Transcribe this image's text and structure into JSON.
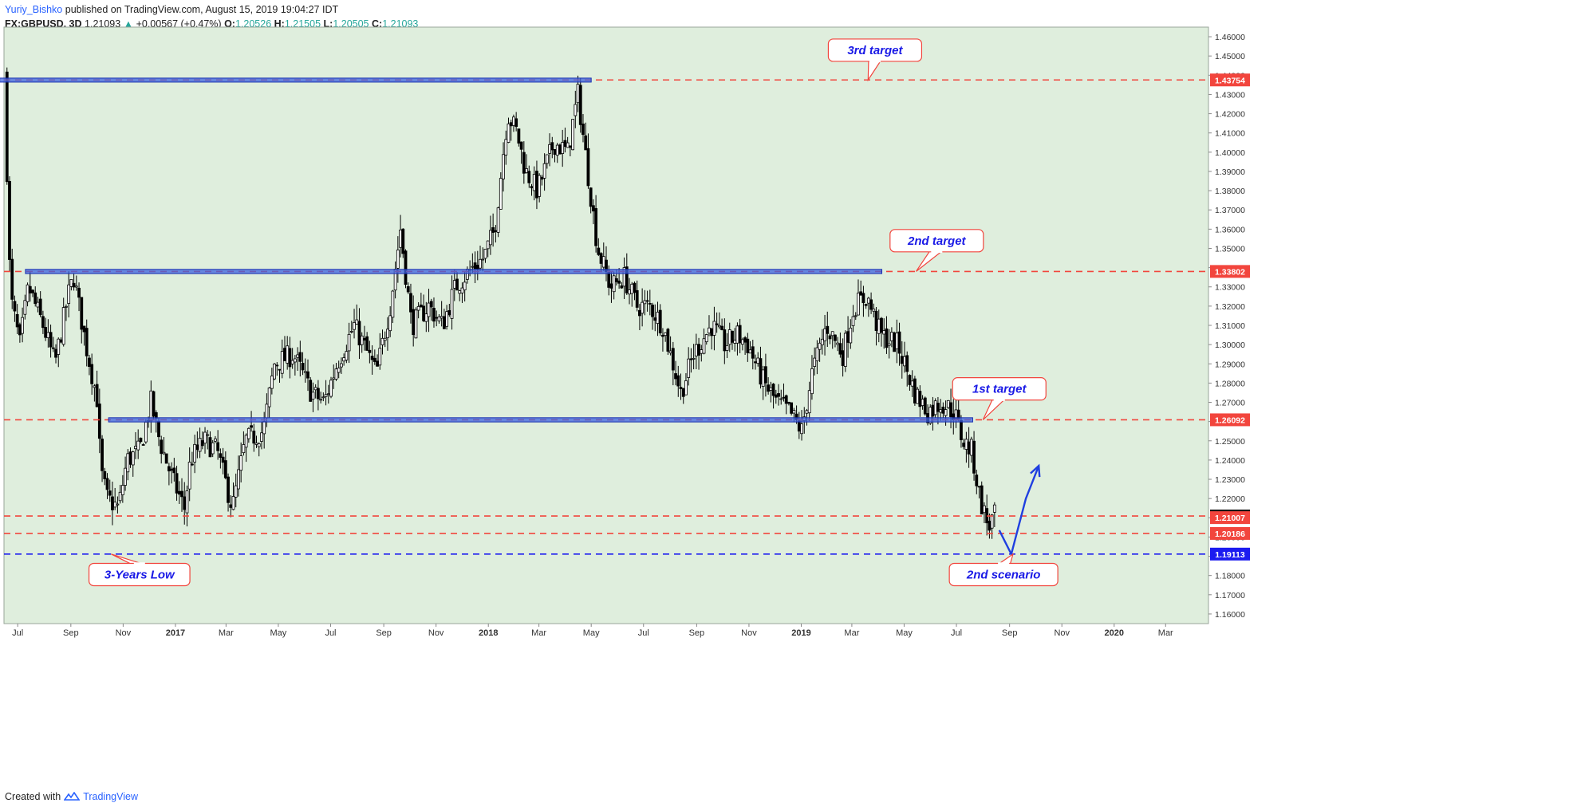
{
  "header": {
    "author": "Yuriy_Bishko",
    "published": "published on TradingView.com, August 15, 2019 19:04:27 IDT",
    "symbol": "FX:GBPUSD, 3D",
    "last": "1.21093",
    "change_arrow": "▲",
    "change": "+0.00567 (+0.47%)",
    "o_label": "O:",
    "o": "1.20526",
    "h_label": "H:",
    "h": "1.21505",
    "l_label": "L:",
    "l": "1.20505",
    "c_label": "C:",
    "c": "1.21093"
  },
  "footer": {
    "created": "Created with",
    "brand": "TradingView"
  },
  "colors": {
    "plot_bg": "#dfeedd",
    "bull": "#ffffff",
    "bear": "#000000",
    "red_line": "#f2453d",
    "blue_line": "#1c1cf0",
    "zone_fill": "#3d63dd",
    "zone_stroke": "#1a2fb0",
    "callout_border": "#f2453d",
    "callout_text": "#1a1ae6",
    "arrow": "#1f3fe0"
  },
  "chart_data": {
    "type": "candlestick",
    "symbol": "GBPUSD",
    "timeframe": "3D",
    "x_range": [
      "2016-06-15",
      "2020-04-20"
    ],
    "y_range": [
      1.155,
      1.465
    ],
    "grid": false,
    "y_ticks": [
      "1.46000",
      "1.45000",
      "1.44000",
      "1.43000",
      "1.42000",
      "1.41000",
      "1.40000",
      "1.39000",
      "1.38000",
      "1.37000",
      "1.36000",
      "1.35000",
      "1.34000",
      "1.33000",
      "1.32000",
      "1.31000",
      "1.30000",
      "1.29000",
      "1.28000",
      "1.27000",
      "1.26000",
      "1.25000",
      "1.24000",
      "1.23000",
      "1.22000",
      "1.21000",
      "1.20000",
      "1.19000",
      "1.18000",
      "1.17000",
      "1.16000"
    ],
    "y_tick_values": [
      1.46,
      1.45,
      1.44,
      1.43,
      1.42,
      1.41,
      1.4,
      1.39,
      1.38,
      1.37,
      1.36,
      1.35,
      1.34,
      1.33,
      1.32,
      1.31,
      1.3,
      1.29,
      1.28,
      1.27,
      1.26,
      1.25,
      1.24,
      1.23,
      1.22,
      1.21,
      1.2,
      1.19,
      1.18,
      1.17,
      1.16
    ],
    "x_ticks": [
      {
        "label": "Jul",
        "date": "2016-07-01"
      },
      {
        "label": "Sep",
        "date": "2016-09-01"
      },
      {
        "label": "Nov",
        "date": "2016-11-01"
      },
      {
        "label": "2017",
        "date": "2017-01-01",
        "bold": true
      },
      {
        "label": "Mar",
        "date": "2017-03-01"
      },
      {
        "label": "May",
        "date": "2017-05-01"
      },
      {
        "label": "Jul",
        "date": "2017-07-01"
      },
      {
        "label": "Sep",
        "date": "2017-09-01"
      },
      {
        "label": "Nov",
        "date": "2017-11-01"
      },
      {
        "label": "2018",
        "date": "2018-01-01",
        "bold": true
      },
      {
        "label": "Mar",
        "date": "2018-03-01"
      },
      {
        "label": "May",
        "date": "2018-05-01"
      },
      {
        "label": "Jul",
        "date": "2018-07-01"
      },
      {
        "label": "Sep",
        "date": "2018-09-01"
      },
      {
        "label": "Nov",
        "date": "2018-11-01"
      },
      {
        "label": "2019",
        "date": "2019-01-01",
        "bold": true
      },
      {
        "label": "Mar",
        "date": "2019-03-01"
      },
      {
        "label": "May",
        "date": "2019-05-01"
      },
      {
        "label": "Jul",
        "date": "2019-07-01"
      },
      {
        "label": "Sep",
        "date": "2019-09-01"
      },
      {
        "label": "Nov",
        "date": "2019-11-01"
      },
      {
        "label": "2020",
        "date": "2020-01-01",
        "bold": true
      },
      {
        "label": "Mar",
        "date": "2020-03-01"
      }
    ],
    "price_path": [
      [
        "2016-06-17",
        1.44
      ],
      [
        "2016-06-24",
        1.325
      ],
      [
        "2016-07-05",
        1.3
      ],
      [
        "2016-07-15",
        1.33
      ],
      [
        "2016-08-01",
        1.31
      ],
      [
        "2016-08-15",
        1.29
      ],
      [
        "2016-08-30",
        1.325
      ],
      [
        "2016-09-06",
        1.335
      ],
      [
        "2016-09-20",
        1.3
      ],
      [
        "2016-10-04",
        1.27
      ],
      [
        "2016-10-07",
        1.235
      ],
      [
        "2016-10-15",
        1.22
      ],
      [
        "2016-10-28",
        1.215
      ],
      [
        "2016-11-07",
        1.24
      ],
      [
        "2016-11-22",
        1.245
      ],
      [
        "2016-12-05",
        1.27
      ],
      [
        "2016-12-15",
        1.25
      ],
      [
        "2016-12-30",
        1.23
      ],
      [
        "2017-01-13",
        1.215
      ],
      [
        "2017-01-20",
        1.24
      ],
      [
        "2017-02-05",
        1.25
      ],
      [
        "2017-02-20",
        1.245
      ],
      [
        "2017-03-10",
        1.215
      ],
      [
        "2017-03-25",
        1.25
      ],
      [
        "2017-04-15",
        1.255
      ],
      [
        "2017-04-28",
        1.29
      ],
      [
        "2017-05-20",
        1.295
      ],
      [
        "2017-06-10",
        1.275
      ],
      [
        "2017-06-25",
        1.27
      ],
      [
        "2017-07-10",
        1.29
      ],
      [
        "2017-07-30",
        1.31
      ],
      [
        "2017-08-10",
        1.3
      ],
      [
        "2017-08-25",
        1.285
      ],
      [
        "2017-09-10",
        1.32
      ],
      [
        "2017-09-22",
        1.36
      ],
      [
        "2017-10-05",
        1.31
      ],
      [
        "2017-10-25",
        1.32
      ],
      [
        "2017-11-10",
        1.31
      ],
      [
        "2017-11-25",
        1.33
      ],
      [
        "2017-12-15",
        1.34
      ],
      [
        "2017-12-28",
        1.345
      ],
      [
        "2018-01-10",
        1.36
      ],
      [
        "2018-01-25",
        1.42
      ],
      [
        "2018-02-05",
        1.41
      ],
      [
        "2018-02-15",
        1.39
      ],
      [
        "2018-03-01",
        1.38
      ],
      [
        "2018-03-20",
        1.405
      ],
      [
        "2018-04-05",
        1.4
      ],
      [
        "2018-04-17",
        1.43
      ],
      [
        "2018-04-27",
        1.395
      ],
      [
        "2018-05-10",
        1.35
      ],
      [
        "2018-05-25",
        1.33
      ],
      [
        "2018-06-10",
        1.335
      ],
      [
        "2018-06-25",
        1.32
      ],
      [
        "2018-07-10",
        1.32
      ],
      [
        "2018-07-25",
        1.31
      ],
      [
        "2018-08-15",
        1.275
      ],
      [
        "2018-08-30",
        1.295
      ],
      [
        "2018-09-20",
        1.31
      ],
      [
        "2018-10-05",
        1.3
      ],
      [
        "2018-10-20",
        1.305
      ],
      [
        "2018-11-01",
        1.3
      ],
      [
        "2018-11-20",
        1.28
      ],
      [
        "2018-12-05",
        1.27
      ],
      [
        "2018-12-20",
        1.265
      ],
      [
        "2019-01-03",
        1.255
      ],
      [
        "2019-01-15",
        1.285
      ],
      [
        "2019-02-01",
        1.31
      ],
      [
        "2019-02-20",
        1.295
      ],
      [
        "2019-03-05",
        1.32
      ],
      [
        "2019-03-20",
        1.325
      ],
      [
        "2019-04-05",
        1.305
      ],
      [
        "2019-04-25",
        1.3
      ],
      [
        "2019-05-15",
        1.275
      ],
      [
        "2019-05-30",
        1.265
      ],
      [
        "2019-06-15",
        1.27
      ],
      [
        "2019-06-30",
        1.265
      ],
      [
        "2019-07-10",
        1.25
      ],
      [
        "2019-07-20",
        1.245
      ],
      [
        "2019-07-30",
        1.22
      ],
      [
        "2019-08-09",
        1.205
      ],
      [
        "2019-08-15",
        1.21093
      ]
    ],
    "zones": [
      {
        "from": "2016-06-10",
        "to": "2018-05-01",
        "top": 1.4385,
        "bottom": 1.4365
      },
      {
        "from": "2016-07-10",
        "to": "2019-04-05",
        "top": 1.3391,
        "bottom": 1.3369
      },
      {
        "from": "2016-10-15",
        "to": "2019-07-20",
        "top": 1.262,
        "bottom": 1.2598
      }
    ],
    "levels": [
      {
        "value": 1.43754,
        "label": "1.43754",
        "style": "red-dashed",
        "tag": "red"
      },
      {
        "value": 1.33802,
        "label": "1.33802",
        "style": "red-dashed",
        "tag": "red"
      },
      {
        "value": 1.26092,
        "label": "1.26092",
        "style": "red-dashed",
        "tag": "red"
      },
      {
        "value": 1.21093,
        "label": "1.21093",
        "style": "red-dashed",
        "tag": "black"
      },
      {
        "value": 1.21007,
        "label": "1.21007",
        "style": "none",
        "tag": "red"
      },
      {
        "value": 1.20186,
        "label": "1.20186",
        "style": "red-dashed",
        "tag": "red"
      },
      {
        "value": 1.19113,
        "label": "1.19113",
        "style": "blue-dashed",
        "tag": "blue"
      }
    ],
    "annotations": [
      {
        "text": "3rd target",
        "box_date": "2019-03-28",
        "box_price": 1.453,
        "tip_date": "2019-03-20",
        "tip_price": 1.43754
      },
      {
        "text": "2nd target",
        "box_date": "2019-06-08",
        "box_price": 1.354,
        "tip_date": "2019-05-15",
        "tip_price": 1.33802
      },
      {
        "text": "1st target",
        "box_date": "2019-08-20",
        "box_price": 1.277,
        "tip_date": "2019-08-01",
        "tip_price": 1.26092
      },
      {
        "text": "3-Years Low",
        "box_date": "2016-11-20",
        "box_price": 1.1805,
        "tip_date": "2016-10-18",
        "tip_price": 1.19113
      },
      {
        "text": "2nd scenario",
        "box_date": "2019-08-25",
        "box_price": 1.1805,
        "tip_date": "2019-09-05",
        "tip_price": 1.19113
      }
    ],
    "scenario_arrow": [
      [
        "2019-08-20",
        1.2035
      ],
      [
        "2019-09-03",
        1.1911
      ],
      [
        "2019-09-20",
        1.22
      ],
      [
        "2019-10-05",
        1.237
      ]
    ]
  }
}
